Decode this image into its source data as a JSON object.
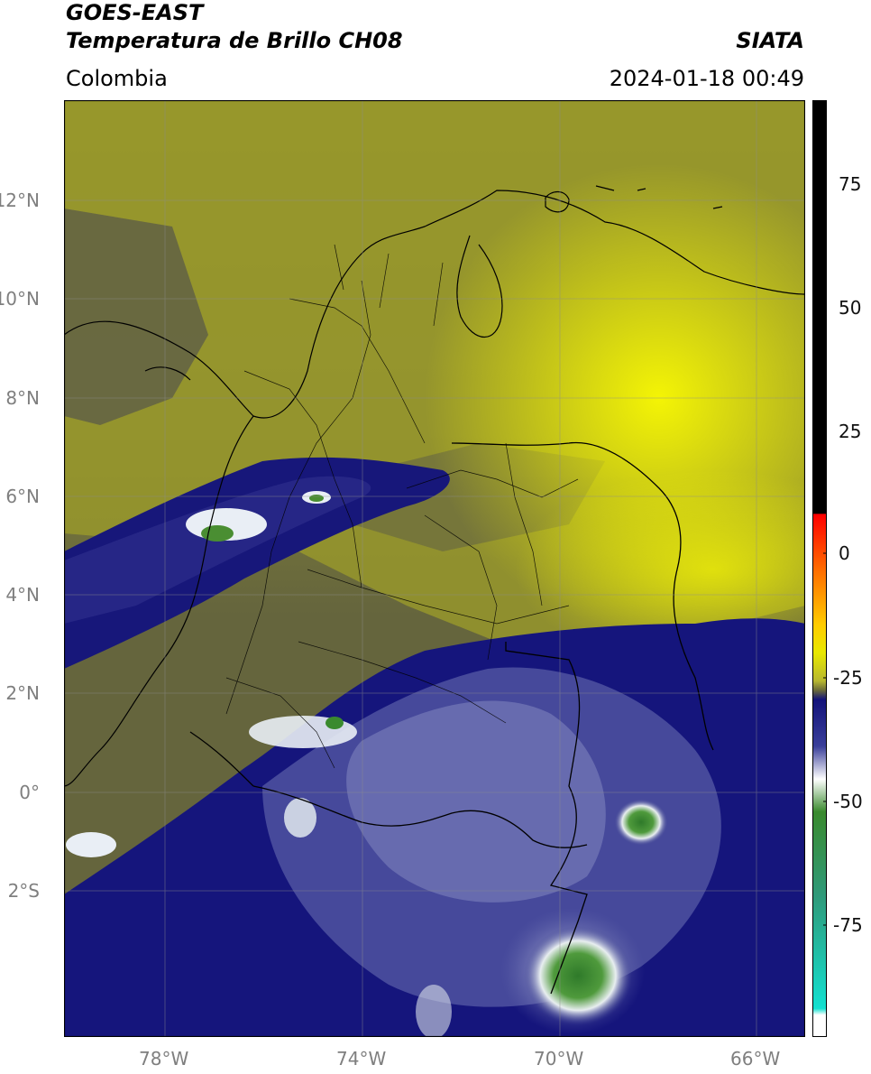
{
  "header": {
    "satellite": "GOES-EAST",
    "product": "Temperatura de Brillo CH08",
    "org": "SIATA",
    "region": "Colombia",
    "datetime": "2024-01-18 00:49"
  },
  "map": {
    "lon_range": [
      -80,
      -65
    ],
    "lat_range": [
      -5,
      14
    ],
    "lat_ticks": [
      "12°N",
      "10°N",
      "8°N",
      "6°N",
      "4°N",
      "2°N",
      "0°",
      "2°S"
    ],
    "lon_ticks": [
      "78°W",
      "74°W",
      "70°W",
      "66°W"
    ],
    "grid": true
  },
  "colorbar": {
    "ticks": [
      "75",
      "50",
      "25",
      "0",
      "-25",
      "-50",
      "-75"
    ],
    "colors": [
      "#000000",
      "#ff0000",
      "#ff9900",
      "#e8e800",
      "#6b6b3a",
      "#13137a",
      "#ffffff",
      "#3a8a2e",
      "#13e0d0"
    ]
  }
}
